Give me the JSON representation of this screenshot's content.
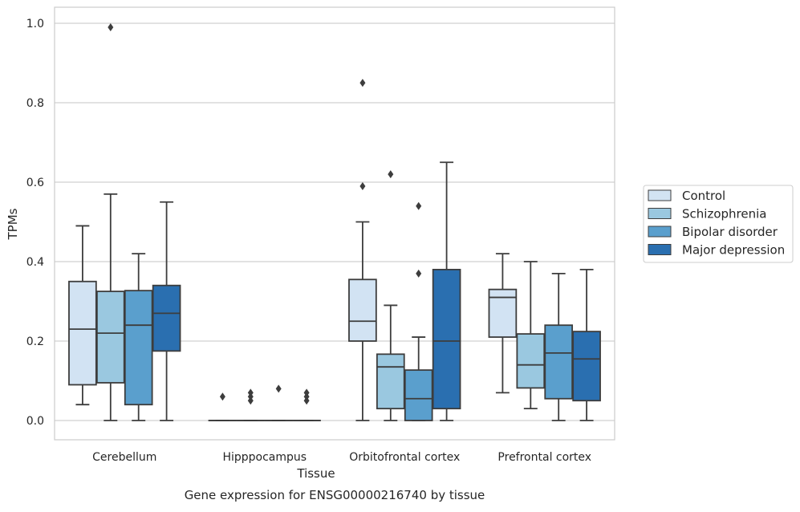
{
  "chart_data": {
    "type": "boxplot",
    "title": "",
    "caption": "Gene expression for ENSG00000216740 by tissue",
    "xlabel": "Tissue",
    "ylabel": "TPMs",
    "ylim": [
      -0.05,
      1.04
    ],
    "yticks": [
      0.0,
      0.2,
      0.4,
      0.6,
      0.8,
      1.0
    ],
    "ytick_labels": [
      "0.0",
      "0.2",
      "0.4",
      "0.6",
      "0.8",
      "1.0"
    ],
    "grid": "horizontal",
    "legend_position": "right",
    "categories": [
      "Cerebellum",
      "Hipppocampus",
      "Orbitofrontal cortex",
      "Prefrontal cortex"
    ],
    "series": [
      {
        "name": "Control",
        "color": "#d2e3f3",
        "boxes": [
          {
            "whisker_low": 0.04,
            "q1": 0.09,
            "median": 0.23,
            "q3": 0.35,
            "whisker_high": 0.49,
            "outliers": []
          },
          {
            "whisker_low": 0.0,
            "q1": 0.0,
            "median": 0.0,
            "q3": 0.0,
            "whisker_high": 0.0,
            "outliers": [
              0.06
            ]
          },
          {
            "whisker_low": 0.0,
            "q1": 0.2,
            "median": 0.25,
            "q3": 0.355,
            "whisker_high": 0.5,
            "outliers": [
              0.59,
              0.85
            ]
          },
          {
            "whisker_low": 0.07,
            "q1": 0.21,
            "median": 0.31,
            "q3": 0.33,
            "whisker_high": 0.42,
            "outliers": []
          }
        ]
      },
      {
        "name": "Schizophrenia",
        "color": "#9ac8e0",
        "boxes": [
          {
            "whisker_low": 0.0,
            "q1": 0.095,
            "median": 0.22,
            "q3": 0.325,
            "whisker_high": 0.57,
            "outliers": [
              0.99
            ]
          },
          {
            "whisker_low": 0.0,
            "q1": 0.0,
            "median": 0.0,
            "q3": 0.0,
            "whisker_high": 0.0,
            "outliers": [
              0.05,
              0.06,
              0.07
            ]
          },
          {
            "whisker_low": 0.0,
            "q1": 0.03,
            "median": 0.135,
            "q3": 0.167,
            "whisker_high": 0.29,
            "outliers": [
              0.62
            ]
          },
          {
            "whisker_low": 0.03,
            "q1": 0.082,
            "median": 0.14,
            "q3": 0.218,
            "whisker_high": 0.4,
            "outliers": []
          }
        ]
      },
      {
        "name": "Bipolar disorder",
        "color": "#5a9fcd",
        "boxes": [
          {
            "whisker_low": 0.0,
            "q1": 0.04,
            "median": 0.24,
            "q3": 0.327,
            "whisker_high": 0.42,
            "outliers": []
          },
          {
            "whisker_low": 0.0,
            "q1": 0.0,
            "median": 0.0,
            "q3": 0.0,
            "whisker_high": 0.0,
            "outliers": [
              0.08
            ]
          },
          {
            "whisker_low": 0.0,
            "q1": 0.0,
            "median": 0.055,
            "q3": 0.127,
            "whisker_high": 0.21,
            "outliers": [
              0.37,
              0.54
            ]
          },
          {
            "whisker_low": 0.0,
            "q1": 0.055,
            "median": 0.17,
            "q3": 0.24,
            "whisker_high": 0.37,
            "outliers": []
          }
        ]
      },
      {
        "name": "Major depression",
        "color": "#2a6fb0",
        "boxes": [
          {
            "whisker_low": 0.0,
            "q1": 0.175,
            "median": 0.27,
            "q3": 0.34,
            "whisker_high": 0.55,
            "outliers": []
          },
          {
            "whisker_low": 0.0,
            "q1": 0.0,
            "median": 0.0,
            "q3": 0.0,
            "whisker_high": 0.0,
            "outliers": [
              0.05,
              0.06,
              0.07
            ]
          },
          {
            "whisker_low": 0.0,
            "q1": 0.03,
            "median": 0.2,
            "q3": 0.38,
            "whisker_high": 0.65,
            "outliers": []
          },
          {
            "whisker_low": 0.0,
            "q1": 0.05,
            "median": 0.155,
            "q3": 0.224,
            "whisker_high": 0.38,
            "outliers": []
          }
        ]
      }
    ]
  }
}
